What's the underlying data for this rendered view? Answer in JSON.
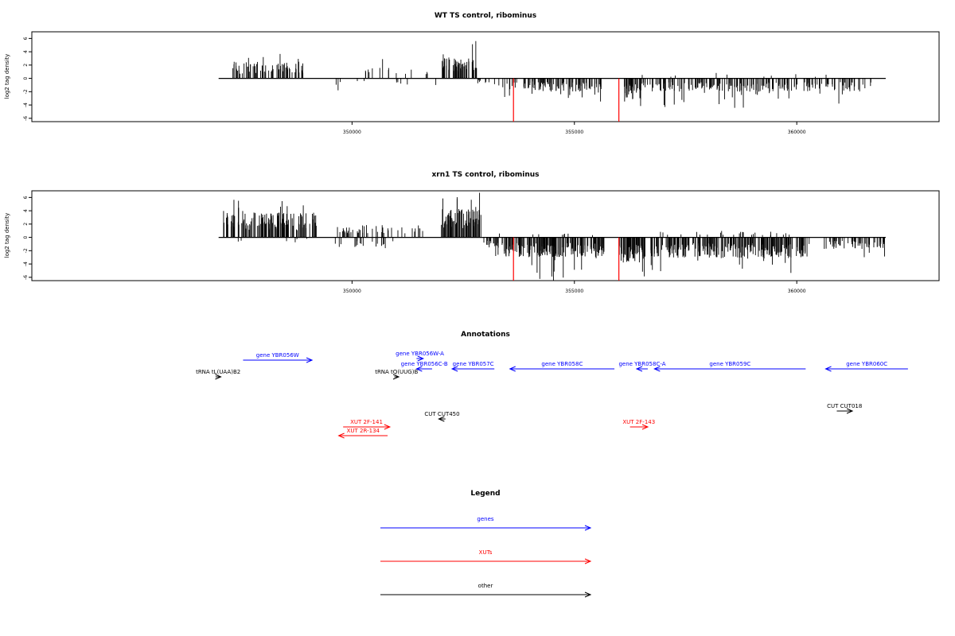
{
  "colors": {
    "genes": "#0000ff",
    "XUTs": "#ff0000",
    "other": "#000000",
    "highlight": "#ff0000"
  },
  "chart_data": [
    {
      "type": "bar",
      "title": "WT TS control, ribominus",
      "ylabel": "log2 tag density",
      "xlim": [
        342800,
        363200
      ],
      "ylim": [
        -6.5,
        7
      ],
      "x_ticks": [
        350000,
        355000,
        360000
      ],
      "x_tick_labels": [
        "350000",
        "355000",
        "360000"
      ],
      "y_ticks": [
        -6,
        -4,
        -2,
        0,
        2,
        4,
        6
      ],
      "y_tick_labels": [
        "-6",
        "-4",
        "-2",
        "0",
        "2",
        "4",
        "6"
      ],
      "baseline_range": [
        347000,
        362000
      ],
      "highlight_lines": [
        {
          "x": 353630,
          "y": -6.5
        },
        {
          "x": 356000,
          "y": -6.5
        }
      ],
      "signal_segments": [
        {
          "range": [
            347300,
            348900
          ],
          "sign": 1,
          "mean": 2.0,
          "max": 4.0,
          "density": 70
        },
        {
          "range": [
            349600,
            350300
          ],
          "sign": -1,
          "mean": 0.8,
          "max": 2.0,
          "density": 5
        },
        {
          "range": [
            350300,
            351800
          ],
          "sign": 1,
          "mean": 1.3,
          "max": 3.0,
          "density": 15
        },
        {
          "range": [
            351000,
            351900
          ],
          "sign": -1,
          "mean": 0.8,
          "max": 2.0,
          "density": 6
        },
        {
          "range": [
            352000,
            352800
          ],
          "sign": 1,
          "mean": 2.5,
          "max": 6.0,
          "density": 55
        },
        {
          "range": [
            352800,
            353100
          ],
          "sign": -1,
          "mean": 0.6,
          "max": 1.5,
          "density": 8
        },
        {
          "range": [
            353200,
            354200
          ],
          "sign": -1,
          "mean": 1.3,
          "max": 3.5,
          "density": 30
        },
        {
          "range": [
            354200,
            355600
          ],
          "sign": -1,
          "mean": 1.6,
          "max": 3.5,
          "density": 75
        },
        {
          "range": [
            356100,
            356500
          ],
          "sign": -1,
          "mean": 2.5,
          "max": 6.0,
          "density": 40
        },
        {
          "range": [
            356500,
            361700
          ],
          "sign": -1,
          "mean": 1.6,
          "max": 4.5,
          "density": 200
        },
        {
          "range": [
            356500,
            361000
          ],
          "sign": 1,
          "mean": 0.5,
          "max": 1.2,
          "density": 10
        }
      ]
    },
    {
      "type": "bar",
      "title": "xrn1 TS control, ribominus",
      "ylabel": "log2 tag density",
      "xlim": [
        342800,
        363200
      ],
      "ylim": [
        -6.5,
        7
      ],
      "x_ticks": [
        350000,
        355000,
        360000
      ],
      "x_tick_labels": [
        "350000",
        "355000",
        "360000"
      ],
      "y_ticks": [
        -6,
        -4,
        -2,
        0,
        2,
        4,
        6
      ],
      "y_tick_labels": [
        "-6",
        "-4",
        "-2",
        "0",
        "2",
        "4",
        "6"
      ],
      "baseline_range": [
        347000,
        362000
      ],
      "highlight_lines": [
        {
          "x": 353630,
          "y": -6.5
        },
        {
          "x": 356000,
          "y": -6.5
        }
      ],
      "signal_segments": [
        {
          "range": [
            347100,
            349200
          ],
          "sign": 1,
          "mean": 3.0,
          "max": 6.0,
          "density": 130
        },
        {
          "range": [
            347400,
            349000
          ],
          "sign": -1,
          "mean": 0.6,
          "max": 2.0,
          "density": 6
        },
        {
          "range": [
            349600,
            350400
          ],
          "sign": 1,
          "mean": 1.5,
          "max": 3.0,
          "density": 25
        },
        {
          "range": [
            349600,
            351000
          ],
          "sign": -1,
          "mean": 1.3,
          "max": 3.5,
          "density": 18
        },
        {
          "range": [
            350400,
            351700
          ],
          "sign": 1,
          "mean": 1.5,
          "max": 3.5,
          "density": 20
        },
        {
          "range": [
            352000,
            352900
          ],
          "sign": 1,
          "mean": 3.5,
          "max": 7.0,
          "density": 80
        },
        {
          "range": [
            352900,
            353400
          ],
          "sign": -1,
          "mean": 1.4,
          "max": 3.0,
          "density": 20
        },
        {
          "range": [
            353400,
            355700
          ],
          "sign": -1,
          "mean": 2.4,
          "max": 6.5,
          "density": 180
        },
        {
          "range": [
            353300,
            355500
          ],
          "sign": 1,
          "mean": 0.5,
          "max": 2.2,
          "density": 8
        },
        {
          "range": [
            356000,
            356600
          ],
          "sign": -1,
          "mean": 3.0,
          "max": 6.5,
          "density": 60
        },
        {
          "range": [
            356700,
            360300
          ],
          "sign": -1,
          "mean": 2.5,
          "max": 5.5,
          "density": 250
        },
        {
          "range": [
            356700,
            360300
          ],
          "sign": 1,
          "mean": 0.7,
          "max": 3.0,
          "density": 25
        },
        {
          "range": [
            360600,
            362000
          ],
          "sign": -1,
          "mean": 1.4,
          "max": 3.5,
          "density": 60
        }
      ]
    }
  ],
  "annotations": {
    "title": "Annotations",
    "features": [
      {
        "label": "gene YBR056W",
        "kind": "genes",
        "start": 347550,
        "end": 349100,
        "row": 0
      },
      {
        "label": "gene YBR056W-A",
        "kind": "genes",
        "start": 351450,
        "end": 351600,
        "row": -1
      },
      {
        "label": "gene YBR056C-B",
        "kind": "genes",
        "start": 351800,
        "end": 351450,
        "row": 1
      },
      {
        "label": "gene YBR057C",
        "kind": "genes",
        "start": 353200,
        "end": 352250,
        "row": 1
      },
      {
        "label": "gene YBR058C",
        "kind": "genes",
        "start": 355900,
        "end": 353550,
        "row": 1
      },
      {
        "label": "gene YBR058C-A",
        "kind": "genes",
        "start": 356650,
        "end": 356400,
        "row": 1
      },
      {
        "label": "gene YBR059C",
        "kind": "genes",
        "start": 360200,
        "end": 356800,
        "row": 1
      },
      {
        "label": "gene YBR060C",
        "kind": "genes",
        "start": 362500,
        "end": 360650,
        "row": 1
      },
      {
        "label": "tRNA tL(UAA)B2",
        "kind": "other",
        "start": 346930,
        "end": 347050,
        "row": 2
      },
      {
        "label": "tRNA tQ(UUG)B",
        "kind": "other",
        "start": 350950,
        "end": 351050,
        "row": 2
      },
      {
        "label": "CUT CUT450",
        "kind": "other",
        "start": 352100,
        "end": 351950,
        "row": 3
      },
      {
        "label": "CUT CUT018",
        "kind": "other",
        "start": 360900,
        "end": 361250,
        "row": 4
      },
      {
        "label": "XUT 2F-141",
        "kind": "XUTs",
        "start": 349800,
        "end": 350850,
        "row": 5
      },
      {
        "label": "XUT 2R-134",
        "kind": "XUTs",
        "start": 350800,
        "end": 349700,
        "row": 6
      },
      {
        "label": "XUT 2F-143",
        "kind": "XUTs",
        "start": 356250,
        "end": 356650,
        "row": 7
      }
    ]
  },
  "legend": {
    "title": "Legend",
    "items": [
      {
        "label": "genes",
        "kind": "genes"
      },
      {
        "label": "XUTs",
        "kind": "XUTs"
      },
      {
        "label": "other",
        "kind": "other"
      }
    ]
  }
}
